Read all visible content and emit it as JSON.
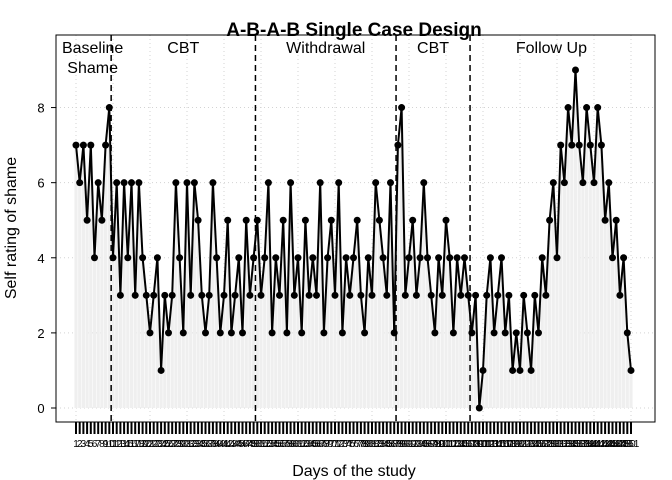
{
  "chart_data": {
    "type": "line",
    "title": "A-B-A-B Single Case Design",
    "xlabel": "Days of the study",
    "ylabel": "Self rating of shame",
    "xlim": [
      0,
      151
    ],
    "ylim": [
      0,
      9
    ],
    "yticks": [
      0,
      2,
      4,
      6,
      8
    ],
    "grid": true,
    "phases": [
      {
        "label": "Baseline\nShame",
        "start_day": 1,
        "end_day": 10
      },
      {
        "label": "CBT",
        "start_day": 11,
        "end_day": 49
      },
      {
        "label": "Withdrawal",
        "start_day": 50,
        "end_day": 87
      },
      {
        "label": "CBT",
        "start_day": 88,
        "end_day": 107
      },
      {
        "label": "Follow Up",
        "start_day": 108,
        "end_day": 151
      }
    ],
    "phase_changes_after_day": [
      10,
      49,
      87,
      107
    ],
    "x": [
      1,
      2,
      3,
      4,
      5,
      6,
      7,
      8,
      9,
      10,
      11,
      12,
      13,
      14,
      15,
      16,
      17,
      18,
      19,
      20,
      21,
      22,
      23,
      24,
      25,
      26,
      27,
      28,
      29,
      30,
      31,
      32,
      33,
      34,
      35,
      36,
      37,
      38,
      39,
      40,
      41,
      42,
      43,
      44,
      45,
      46,
      47,
      48,
      49,
      50,
      51,
      52,
      53,
      54,
      55,
      56,
      57,
      58,
      59,
      60,
      61,
      62,
      63,
      64,
      65,
      66,
      67,
      68,
      69,
      70,
      71,
      72,
      73,
      74,
      75,
      76,
      77,
      78,
      79,
      80,
      81,
      82,
      83,
      84,
      85,
      86,
      87,
      88,
      89,
      90,
      91,
      92,
      93,
      94,
      95,
      96,
      97,
      98,
      99,
      100,
      101,
      102,
      103,
      104,
      105,
      106,
      107,
      108,
      109,
      110,
      111,
      112,
      113,
      114,
      115,
      116,
      117,
      118,
      119,
      120,
      121,
      122,
      123,
      124,
      125,
      126,
      127,
      128,
      129,
      130,
      131,
      132,
      133,
      134,
      135,
      136,
      137,
      138,
      139,
      140,
      141,
      142,
      143,
      144,
      145,
      146,
      147,
      148,
      149,
      150,
      151
    ],
    "values": [
      7,
      6,
      7,
      5,
      7,
      4,
      6,
      5,
      7,
      8,
      4,
      6,
      3,
      6,
      4,
      6,
      3,
      6,
      4,
      3,
      2,
      3,
      4,
      1,
      3,
      2,
      3,
      6,
      4,
      2,
      6,
      3,
      6,
      5,
      3,
      2,
      3,
      6,
      4,
      2,
      3,
      5,
      2,
      3,
      4,
      2,
      5,
      3,
      4,
      5,
      3,
      4,
      6,
      2,
      4,
      3,
      5,
      2,
      6,
      3,
      4,
      2,
      5,
      3,
      4,
      3,
      6,
      2,
      4,
      5,
      3,
      6,
      2,
      4,
      3,
      4,
      5,
      3,
      2,
      4,
      3,
      6,
      5,
      4,
      3,
      6,
      2,
      7,
      8,
      3,
      4,
      5,
      3,
      4,
      6,
      4,
      3,
      2,
      4,
      3,
      5,
      4,
      2,
      4,
      3,
      4,
      3,
      2,
      3,
      0,
      1,
      3,
      4,
      2,
      3,
      4,
      2,
      3,
      1,
      2,
      1,
      3,
      2,
      1,
      3,
      2,
      4,
      3,
      5,
      6,
      4,
      7,
      6,
      8,
      7,
      9,
      7,
      6,
      8,
      7,
      6,
      8,
      7,
      5,
      6,
      4,
      5,
      3,
      4,
      2,
      1
    ],
    "series_color": "#000000",
    "area_color": "#efefef"
  }
}
